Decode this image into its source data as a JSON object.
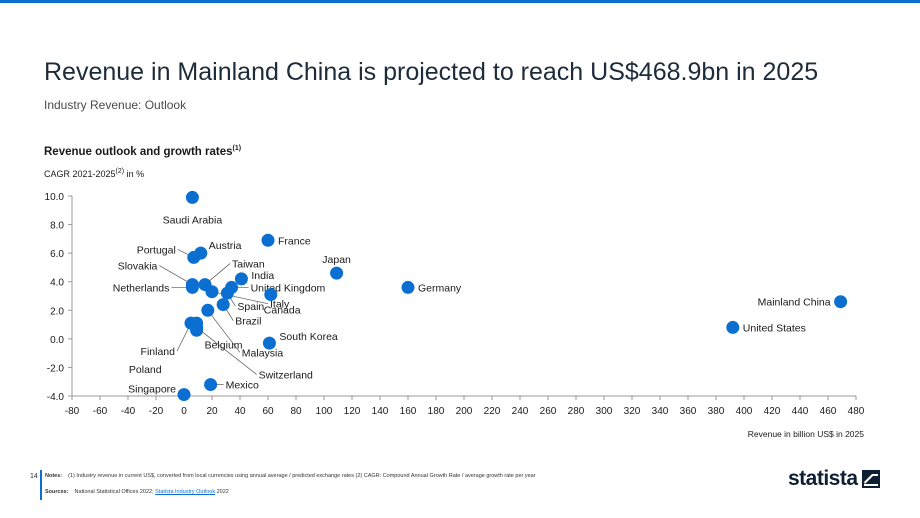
{
  "header": {
    "title": "Revenue in Mainland China is projected to reach US$468.9bn in 2025",
    "subtitle": "Industry Revenue: Outlook"
  },
  "chart_heading": {
    "text": "Revenue outlook and growth rates",
    "sup": "(1)"
  },
  "y_unit": {
    "pre": "CAGR 2021-2025",
    "sup": "(2)",
    "post": " in %"
  },
  "footer": {
    "page": "14",
    "notes_label": "Notes:",
    "notes_text": "(1) Industry revenue in current US$, converted from local currencies using annual average / predicted exchange rates (2) CAGR: Compound Annual Growth Rate / average growth rate per year",
    "sources_label": "Sources:",
    "sources_text": "National Statistical Offices 2022; ",
    "sources_link": "Statista Industry Outlook",
    "sources_year": " 2022"
  },
  "logo": {
    "text": "statista"
  },
  "colors": {
    "accent": "#0a6fd1",
    "dot": "#0a6fd1",
    "title": "#1e2b3a"
  },
  "chart_data": {
    "type": "scatter",
    "xlabel": "Revenue in billion US$ in 2025",
    "ylabel": "CAGR 2021-2025 in %",
    "xlim": [
      -80,
      480
    ],
    "ylim": [
      -4,
      10
    ],
    "xticks": [
      "-80",
      "-60",
      "-40",
      "-20",
      "0",
      "20",
      "40",
      "60",
      "80",
      "100",
      "120",
      "140",
      "160",
      "180",
      "200",
      "220",
      "240",
      "260",
      "280",
      "300",
      "320",
      "340",
      "360",
      "380",
      "400",
      "420",
      "440",
      "460",
      "480"
    ],
    "yticks": [
      "-4.0",
      "-2.0",
      "0.0",
      "2.0",
      "4.0",
      "6.0",
      "8.0",
      "10.0"
    ],
    "grid": false,
    "points": [
      {
        "label": "Saudi Arabia",
        "x": 6,
        "y": 9.9
      },
      {
        "label": "France",
        "x": 60,
        "y": 6.9
      },
      {
        "label": "Austria",
        "x": 12,
        "y": 6.0
      },
      {
        "label": "Portugal",
        "x": 7,
        "y": 5.7
      },
      {
        "label": "Japan",
        "x": 109,
        "y": 4.6
      },
      {
        "label": "Taiwan",
        "x": 15,
        "y": 3.8
      },
      {
        "label": "India",
        "x": 41,
        "y": 4.2
      },
      {
        "label": "Slovakia",
        "x": 6,
        "y": 3.8
      },
      {
        "label": "Netherlands",
        "x": 6,
        "y": 3.6
      },
      {
        "label": "United Kingdom",
        "x": 34,
        "y": 3.6
      },
      {
        "label": "Germany",
        "x": 160,
        "y": 3.6
      },
      {
        "label": "Italy",
        "x": 20,
        "y": 3.3
      },
      {
        "label": "Canada",
        "x": 62,
        "y": 3.1
      },
      {
        "label": "Spain",
        "x": 31,
        "y": 3.2
      },
      {
        "label": "Mainland China",
        "x": 469,
        "y": 2.6
      },
      {
        "label": "Brazil",
        "x": 28,
        "y": 2.4
      },
      {
        "label": "Malaysia",
        "x": 17,
        "y": 2.0
      },
      {
        "label": "Finland",
        "x": 5,
        "y": 1.1
      },
      {
        "label": "Poland",
        "x": 9,
        "y": 1.1
      },
      {
        "label": "Belgium",
        "x": 9,
        "y": 0.6
      },
      {
        "label": "Switzerland",
        "x": 9,
        "y": 0.8
      },
      {
        "label": "United States",
        "x": 392,
        "y": 0.8
      },
      {
        "label": "South Korea",
        "x": 61,
        "y": -0.3
      },
      {
        "label": "Mexico",
        "x": 19,
        "y": -3.2
      },
      {
        "label": "Singapore",
        "x": 0,
        "y": -3.9
      }
    ]
  }
}
